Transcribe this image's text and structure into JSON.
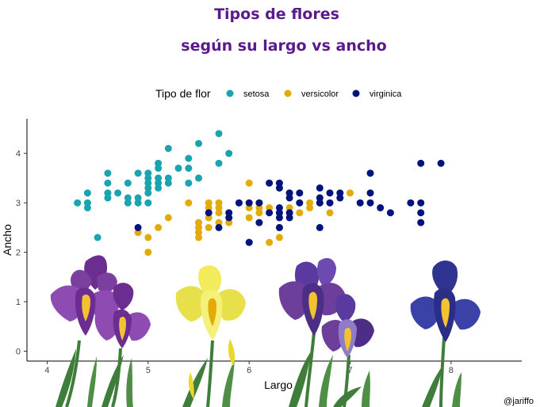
{
  "chart_data": {
    "type": "scatter",
    "title": "Tipos de flores",
    "subtitle": "según su largo vs ancho",
    "xlabel": "Largo",
    "ylabel": "Ancho",
    "xlim": [
      3.8,
      8.7
    ],
    "ylim": [
      -0.2,
      4.7
    ],
    "x_ticks": [
      4,
      5,
      6,
      7,
      8
    ],
    "y_ticks": [
      0,
      1,
      2,
      3,
      4
    ],
    "grid": false,
    "legend_title": "Tipo de flor",
    "legend_position": "top",
    "caption": "@jariffo",
    "series": [
      {
        "name": "setosa",
        "color": "#1AA3B0",
        "points": [
          [
            4.3,
            3.0
          ],
          [
            4.4,
            2.9
          ],
          [
            4.4,
            3.0
          ],
          [
            4.4,
            3.2
          ],
          [
            4.5,
            2.3
          ],
          [
            4.6,
            3.1
          ],
          [
            4.6,
            3.2
          ],
          [
            4.6,
            3.4
          ],
          [
            4.6,
            3.6
          ],
          [
            4.7,
            3.2
          ],
          [
            4.8,
            3.0
          ],
          [
            4.8,
            3.1
          ],
          [
            4.8,
            3.4
          ],
          [
            4.9,
            3.0
          ],
          [
            4.9,
            3.1
          ],
          [
            4.9,
            3.6
          ],
          [
            5.0,
            3.0
          ],
          [
            5.0,
            3.2
          ],
          [
            5.0,
            3.3
          ],
          [
            5.0,
            3.4
          ],
          [
            5.0,
            3.5
          ],
          [
            5.0,
            3.6
          ],
          [
            5.1,
            3.3
          ],
          [
            5.1,
            3.4
          ],
          [
            5.1,
            3.5
          ],
          [
            5.1,
            3.7
          ],
          [
            5.1,
            3.8
          ],
          [
            5.2,
            3.4
          ],
          [
            5.2,
            3.5
          ],
          [
            5.2,
            4.1
          ],
          [
            5.3,
            3.7
          ],
          [
            5.4,
            3.4
          ],
          [
            5.4,
            3.7
          ],
          [
            5.4,
            3.9
          ],
          [
            5.5,
            3.5
          ],
          [
            5.5,
            4.2
          ],
          [
            5.7,
            3.8
          ],
          [
            5.7,
            4.4
          ],
          [
            5.8,
            4.0
          ]
        ]
      },
      {
        "name": "versicolor",
        "color": "#E3AB0A",
        "points": [
          [
            4.9,
            2.4
          ],
          [
            5.0,
            2.0
          ],
          [
            5.0,
            2.3
          ],
          [
            5.1,
            2.5
          ],
          [
            5.2,
            2.7
          ],
          [
            5.4,
            3.0
          ],
          [
            5.5,
            2.3
          ],
          [
            5.5,
            2.4
          ],
          [
            5.5,
            2.5
          ],
          [
            5.5,
            2.6
          ],
          [
            5.6,
            2.5
          ],
          [
            5.6,
            2.7
          ],
          [
            5.6,
            2.9
          ],
          [
            5.6,
            3.0
          ],
          [
            5.7,
            2.6
          ],
          [
            5.7,
            2.8
          ],
          [
            5.7,
            2.9
          ],
          [
            5.7,
            3.0
          ],
          [
            5.8,
            2.6
          ],
          [
            5.8,
            2.7
          ],
          [
            5.9,
            3.0
          ],
          [
            6.0,
            2.2
          ],
          [
            6.0,
            2.7
          ],
          [
            6.0,
            2.9
          ],
          [
            6.0,
            3.4
          ],
          [
            6.1,
            2.8
          ],
          [
            6.1,
            2.9
          ],
          [
            6.1,
            3.0
          ],
          [
            6.2,
            2.2
          ],
          [
            6.2,
            2.9
          ],
          [
            6.3,
            2.3
          ],
          [
            6.3,
            2.5
          ],
          [
            6.3,
            3.3
          ],
          [
            6.4,
            2.9
          ],
          [
            6.4,
            3.2
          ],
          [
            6.5,
            2.8
          ],
          [
            6.6,
            2.9
          ],
          [
            6.6,
            3.0
          ],
          [
            6.7,
            3.0
          ],
          [
            6.7,
            3.1
          ],
          [
            6.8,
            2.8
          ],
          [
            6.9,
            3.1
          ],
          [
            7.0,
            3.2
          ]
        ]
      },
      {
        "name": "virginica",
        "color": "#00137F",
        "points": [
          [
            4.9,
            2.5
          ],
          [
            5.6,
            2.8
          ],
          [
            5.7,
            2.5
          ],
          [
            5.8,
            2.7
          ],
          [
            5.8,
            2.8
          ],
          [
            5.9,
            3.0
          ],
          [
            6.0,
            2.2
          ],
          [
            6.0,
            3.0
          ],
          [
            6.1,
            2.6
          ],
          [
            6.1,
            3.0
          ],
          [
            6.2,
            2.8
          ],
          [
            6.2,
            3.4
          ],
          [
            6.3,
            2.5
          ],
          [
            6.3,
            2.7
          ],
          [
            6.3,
            2.8
          ],
          [
            6.3,
            2.9
          ],
          [
            6.3,
            3.3
          ],
          [
            6.3,
            3.4
          ],
          [
            6.4,
            2.7
          ],
          [
            6.4,
            2.8
          ],
          [
            6.4,
            3.1
          ],
          [
            6.4,
            3.2
          ],
          [
            6.5,
            3.0
          ],
          [
            6.5,
            3.2
          ],
          [
            6.7,
            2.5
          ],
          [
            6.7,
            3.0
          ],
          [
            6.7,
            3.1
          ],
          [
            6.7,
            3.3
          ],
          [
            6.8,
            3.0
          ],
          [
            6.8,
            3.2
          ],
          [
            6.9,
            3.1
          ],
          [
            6.9,
            3.2
          ],
          [
            7.1,
            3.0
          ],
          [
            7.2,
            3.0
          ],
          [
            7.2,
            3.2
          ],
          [
            7.2,
            3.6
          ],
          [
            7.3,
            2.9
          ],
          [
            7.4,
            2.8
          ],
          [
            7.6,
            3.0
          ],
          [
            7.7,
            2.6
          ],
          [
            7.7,
            2.8
          ],
          [
            7.7,
            3.0
          ],
          [
            7.7,
            3.8
          ],
          [
            7.9,
            3.8
          ]
        ]
      }
    ]
  },
  "palette": {
    "title_color": "#5A1A8C",
    "setosa": "#1AA3B0",
    "versicolor": "#E3AB0A",
    "virginica": "#00137F",
    "stem_green": "#3F7D3A",
    "iris_purple": "#6B2D8F",
    "iris_yellow": "#E8E04A",
    "iris_violet": "#5A3A9E",
    "iris_blue": "#2E348F"
  },
  "decorations": [
    "iris-purple-pair",
    "iris-yellow",
    "iris-violet-pair",
    "iris-blue"
  ]
}
